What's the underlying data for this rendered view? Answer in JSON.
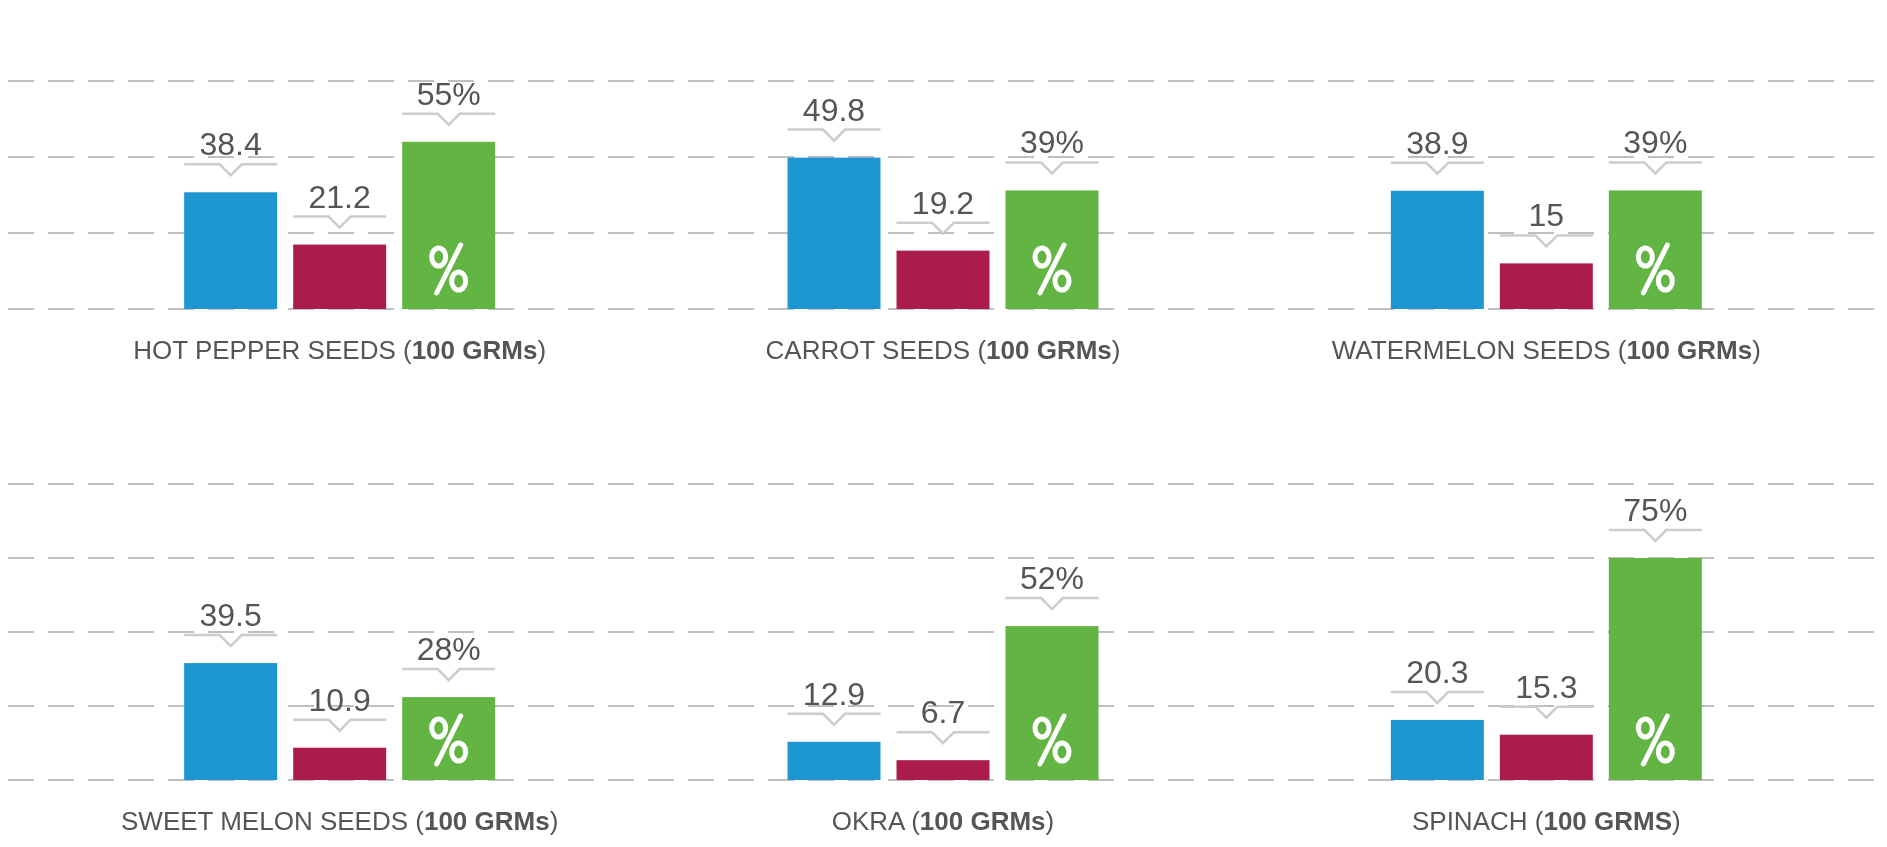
{
  "chart_data": [
    {
      "type": "bar",
      "categories": [
        "HOT PEPPER SEEDS (100 GRMs)",
        "CARROT SEEDS (100 GRMs)",
        "WATERMELON SEEDS (100 GRMs)"
      ],
      "ylim": [
        0,
        75
      ],
      "yticks": [
        {
          "value": 0,
          "label": null
        },
        {
          "value": 25,
          "label": null
        },
        {
          "value": 50,
          "label": null
        },
        {
          "value": 75,
          "label": null
        }
      ],
      "grid": "y",
      "tick_labels": "x",
      "series": [
        {
          "color": "#1e96d2",
          "values": [
            38.4,
            49.8,
            38.9
          ],
          "value_labels": [
            "38.4",
            "49.8",
            "38.9"
          ]
        },
        {
          "color": "#ab1c4a",
          "values": [
            21.2,
            19.2,
            15
          ],
          "value_labels": [
            "21.2",
            "19.2",
            "15"
          ]
        },
        {
          "color": "#62b443",
          "values": [
            55,
            39,
            39
          ],
          "value_labels": [
            "55%",
            "39%",
            "39%"
          ]
        }
      ]
    },
    {
      "type": "bar",
      "categories": [
        "SWEET MELON SEEDS (100 GRMs)",
        "OKRA (100 GRMs)",
        "SPINACH (100 GRMS)"
      ],
      "ylim": [
        0,
        100
      ],
      "yticks": [
        {
          "value": 0,
          "label": null
        },
        {
          "value": 25,
          "label": null
        },
        {
          "value": 50,
          "label": null
        },
        {
          "value": 75,
          "label": null
        },
        {
          "value": 100,
          "label": null
        }
      ],
      "grid": "y",
      "tick_labels": "x",
      "series": [
        {
          "color": "#1e96d2",
          "values": [
            39.5,
            12.9,
            20.3
          ],
          "value_labels": [
            "39.5",
            "12.9",
            "20.3"
          ]
        },
        {
          "color": "#ab1c4a",
          "values": [
            10.9,
            6.7,
            15.3
          ],
          "value_labels": [
            "10.9",
            "6.7",
            "15.3"
          ]
        },
        {
          "color": "#62b443",
          "values": [
            28,
            52,
            75
          ],
          "value_labels": [
            "28%",
            "52%",
            "75%"
          ]
        }
      ]
    }
  ]
}
